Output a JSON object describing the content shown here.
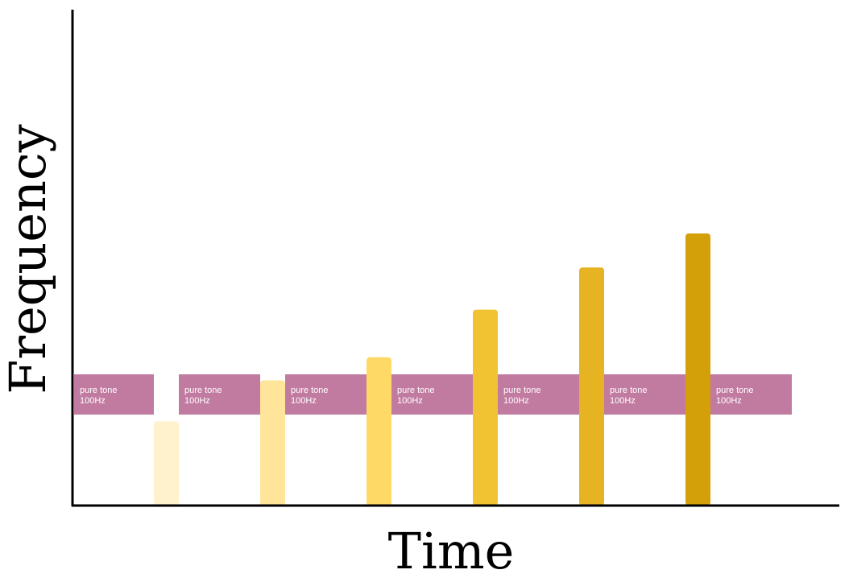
{
  "axes": {
    "x_title": "Time",
    "y_title": "Frequency"
  },
  "tone_band": {
    "color": "#c27ba0",
    "label_line1": "pure tone",
    "label_line2": "100Hz",
    "segment_count": 7
  },
  "probe_tones": [
    {
      "level": 0.31,
      "color": "#fff2cc"
    },
    {
      "level": 0.46,
      "color": "#ffe599"
    },
    {
      "level": 0.545,
      "color": "#ffd966"
    },
    {
      "level": 0.72,
      "color": "#f1c232"
    },
    {
      "level": 0.875,
      "color": "#e6b422"
    },
    {
      "level": 1.0,
      "color": "#d4a00a"
    }
  ]
}
